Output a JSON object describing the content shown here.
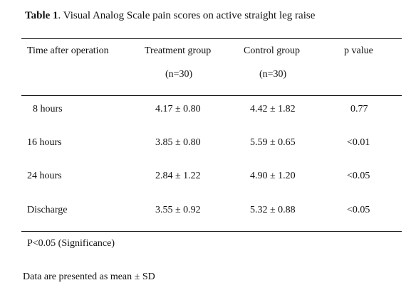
{
  "table": {
    "label": "Table 1",
    "title": ".  Visual Analog Scale pain scores on active straight leg raise",
    "headers": {
      "time": "Time after operation",
      "treatment": "Treatment group",
      "treatment_n": "(n=30)",
      "control": "Control group",
      "control_n": "(n=30)",
      "p": "p value"
    },
    "rows": [
      {
        "time": "8 hours",
        "treatment": "4.17 ± 0.80",
        "control": "4.42 ± 1.82",
        "p": "0.77"
      },
      {
        "time": "16 hours",
        "treatment": "3.85 ± 0.80",
        "control": "5.59 ± 0.65",
        "p": "<0.01"
      },
      {
        "time": "24 hours",
        "treatment": "2.84 ± 1.22",
        "control": "4.90 ± 1.20",
        "p": "<0.05"
      },
      {
        "time": "Discharge",
        "treatment": "3.55 ± 0.92",
        "control": "5.32 ± 0.88",
        "p": "<0.05"
      }
    ],
    "footnote": "P<0.05 (Significance)",
    "note": "Data are presented as mean ± SD"
  }
}
